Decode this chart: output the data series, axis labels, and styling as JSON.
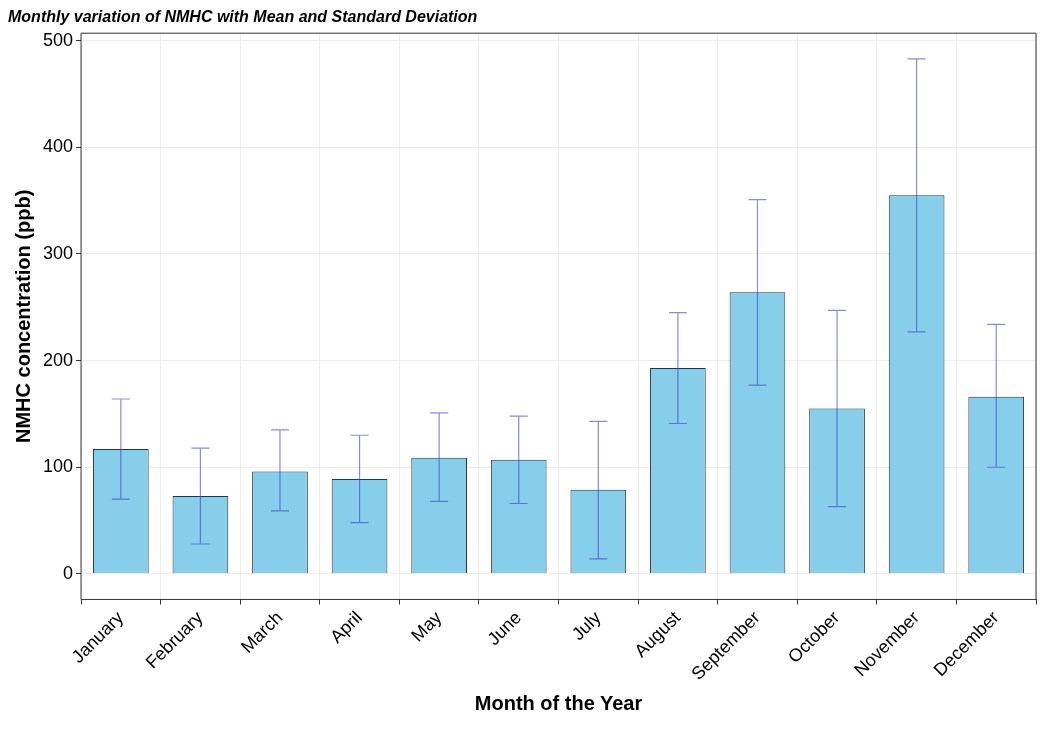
{
  "chart_data": {
    "type": "bar",
    "title": "Monthly variation of NMHC with Mean and Standard Deviation",
    "xlabel": "Month of the Year",
    "ylabel": "NMHC concentration (ppb)",
    "categories": [
      "January",
      "February",
      "March",
      "April",
      "May",
      "June",
      "July",
      "August",
      "September",
      "October",
      "November",
      "December"
    ],
    "series": [
      {
        "color": "#87ceeb",
        "values": [
          117,
          73,
          96,
          89,
          109,
          107,
          79,
          193,
          264,
          155,
          355,
          166
        ],
        "errors": [
          [
            70,
            164
          ],
          [
            28,
            118
          ],
          [
            59,
            135
          ],
          [
            48,
            130
          ],
          [
            68,
            151
          ],
          [
            66,
            148
          ],
          [
            14,
            143
          ],
          [
            141,
            245
          ],
          [
            177,
            351
          ],
          [
            63,
            247
          ],
          [
            227,
            483
          ],
          [
            100,
            234
          ]
        ]
      }
    ],
    "ylim": [
      -24,
      507
    ],
    "yticks": [
      0,
      100,
      200,
      300,
      400,
      500
    ],
    "grid": true,
    "legend": false
  }
}
